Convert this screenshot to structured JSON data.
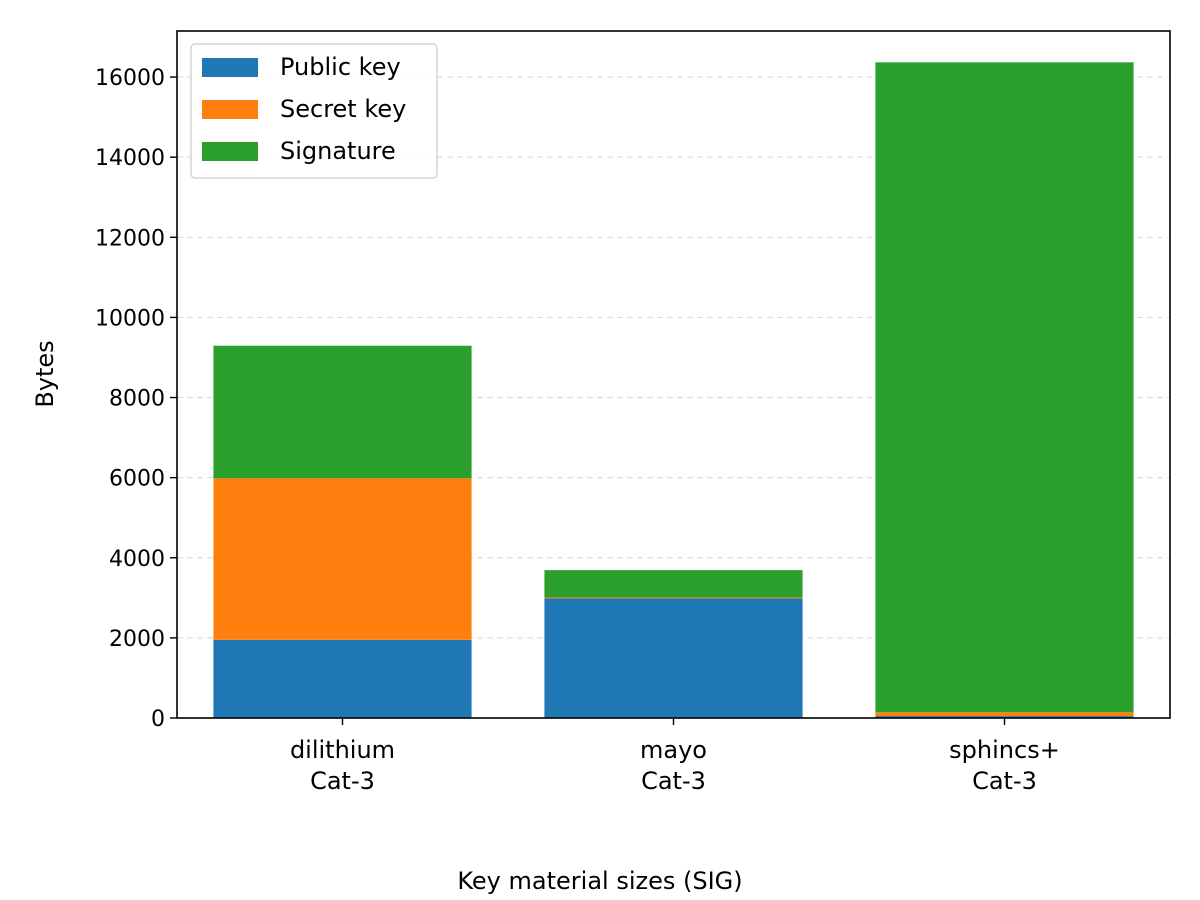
{
  "chart_data": {
    "type": "bar",
    "stacked": true,
    "categories": [
      "dilithium\nCat-3",
      "mayo\nCat-3",
      "sphincs+\nCat-3"
    ],
    "series": [
      {
        "name": "Public key",
        "color": "#1f77b4",
        "values": [
          1952,
          2986,
          48
        ]
      },
      {
        "name": "Secret key",
        "color": "#ff7f0e",
        "values": [
          4032,
          24,
          96
        ]
      },
      {
        "name": "Signature",
        "color": "#2ca02c",
        "values": [
          3309,
          681,
          16224
        ]
      }
    ],
    "title": "",
    "xlabel": "Key material sizes (SIG)",
    "ylabel": "Bytes",
    "ylim": [
      0,
      17150
    ],
    "yticks": [
      0,
      2000,
      4000,
      6000,
      8000,
      10000,
      12000,
      14000,
      16000
    ],
    "grid": "y-dashed",
    "legend_position": "top-left"
  }
}
